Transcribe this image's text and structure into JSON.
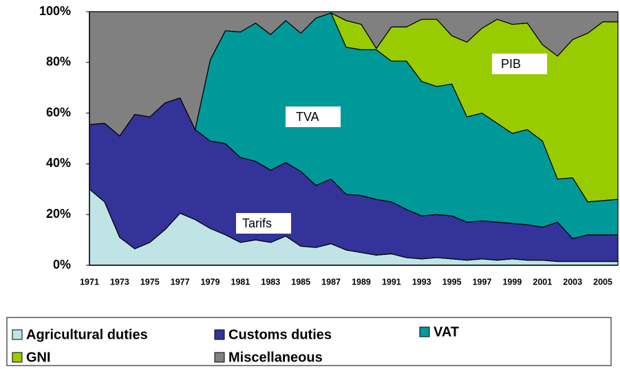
{
  "chart_data": {
    "type": "stacked_area",
    "categories": [
      "1971",
      null,
      "1973",
      null,
      "1975",
      null,
      "1977",
      null,
      "1979",
      null,
      "1981",
      null,
      "1983",
      null,
      "1985",
      null,
      "1987",
      null,
      "1989",
      null,
      "1991",
      null,
      "1993",
      null,
      "1995",
      null,
      "1997",
      null,
      "1999",
      null,
      "2001",
      null,
      "2003",
      null,
      "2005",
      null
    ],
    "series": [
      {
        "name": "Agricultural duties",
        "color": "#c0e4e6",
        "values": [
          30,
          25,
          11,
          6.5,
          9,
          14,
          20.5,
          18,
          14.5,
          12,
          9,
          10,
          9,
          11.5,
          7.5,
          7,
          8.5,
          6,
          5,
          4,
          4.5,
          3,
          2.5,
          3,
          2.5,
          2,
          2.5,
          2,
          2.5,
          2,
          2,
          1.5,
          1.5,
          1.5,
          1.5,
          1.5
        ]
      },
      {
        "name": "Customs duties",
        "color": "#333399",
        "values": [
          25.5,
          31,
          40,
          53,
          49.5,
          50,
          45.5,
          35.5,
          34.5,
          36,
          33.5,
          31,
          28.5,
          29,
          29.5,
          24.5,
          25.5,
          22,
          22.5,
          22,
          20.5,
          19,
          17,
          17,
          17,
          15,
          15,
          15,
          14,
          14,
          13,
          15.5,
          9,
          10.5,
          10.5,
          10.5
        ]
      },
      {
        "name": "VAT",
        "color": "#009999",
        "values": [
          0,
          0,
          0,
          0,
          0,
          0,
          0,
          0,
          32,
          44.5,
          49.5,
          54.5,
          53.5,
          56,
          54.5,
          66,
          65.5,
          58,
          57.5,
          59,
          55.5,
          58.5,
          53,
          50.5,
          52,
          41.5,
          42.5,
          39,
          35.5,
          37.5,
          34,
          17,
          24,
          13,
          13.5,
          14
        ]
      },
      {
        "name": "GNI",
        "color": "#99cc00",
        "values": [
          0,
          0,
          0,
          0,
          0,
          0,
          0,
          0,
          0,
          0,
          0,
          0,
          0,
          0,
          0,
          0,
          0,
          10.5,
          10,
          0.5,
          13.5,
          13.5,
          24.5,
          26.5,
          19,
          29.5,
          33.5,
          41,
          43,
          42,
          38,
          48.5,
          54.5,
          66.5,
          70.5,
          70
        ]
      },
      {
        "name": "Miscellaneous",
        "color": "#808080",
        "values": [
          44.5,
          44,
          49,
          40.5,
          41.5,
          36,
          34,
          46.5,
          19,
          7.5,
          8,
          4.5,
          9,
          3.5,
          8.5,
          2.5,
          0.5,
          3.5,
          5,
          14.5,
          6,
          6,
          3,
          3,
          9.5,
          12,
          6.5,
          3,
          5,
          4.5,
          13,
          17.5,
          11,
          8.5,
          4,
          4
        ]
      }
    ],
    "ylim": [
      0,
      100
    ],
    "yticks": [
      {
        "value": 0,
        "label": "0%"
      },
      {
        "value": 20,
        "label": "20%"
      },
      {
        "value": 40,
        "label": "40%"
      },
      {
        "value": 60,
        "label": "60%"
      },
      {
        "value": 80,
        "label": "80%"
      },
      {
        "value": 100,
        "label": "100%"
      }
    ],
    "annotations": [
      "TVA",
      "PIB",
      "Tarifs"
    ]
  }
}
